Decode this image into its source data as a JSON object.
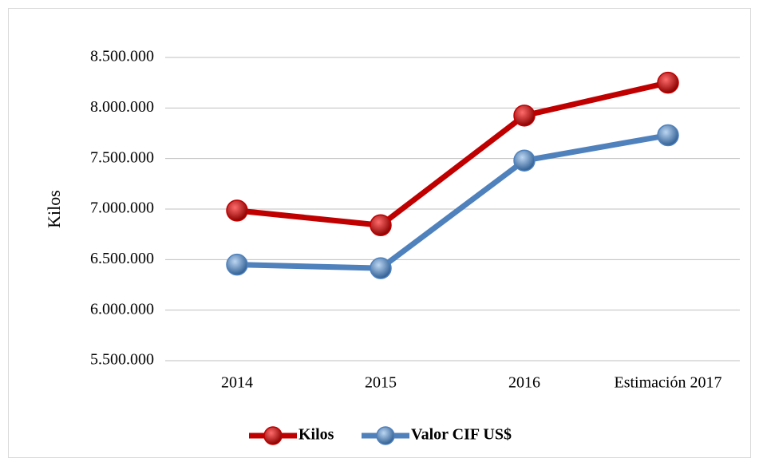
{
  "chart_data": {
    "type": "line",
    "y_label": "Kilos",
    "categories": [
      "2014",
      "2015",
      "2016",
      "Estimación 2017"
    ],
    "series": [
      {
        "name": "Kilos",
        "color": "#c00000",
        "values": [
          6985000,
          6840000,
          7925000,
          8250000
        ]
      },
      {
        "name": "Valor CIF US$",
        "color": "#4f81bd",
        "values": [
          6450000,
          6415000,
          7480000,
          7730000
        ]
      }
    ],
    "ylim": [
      5500000,
      8500000
    ],
    "yticks": [
      {
        "value": 5500000,
        "label": "5.500.000"
      },
      {
        "value": 6000000,
        "label": "6.000.000"
      },
      {
        "value": 6500000,
        "label": "6.500.000"
      },
      {
        "value": 7000000,
        "label": "7.000.000"
      },
      {
        "value": 7500000,
        "label": "7.500.000"
      },
      {
        "value": 8000000,
        "label": "8.000.000"
      },
      {
        "value": 8500000,
        "label": "8.500.000"
      }
    ],
    "grid": true,
    "legend": "bottom"
  }
}
